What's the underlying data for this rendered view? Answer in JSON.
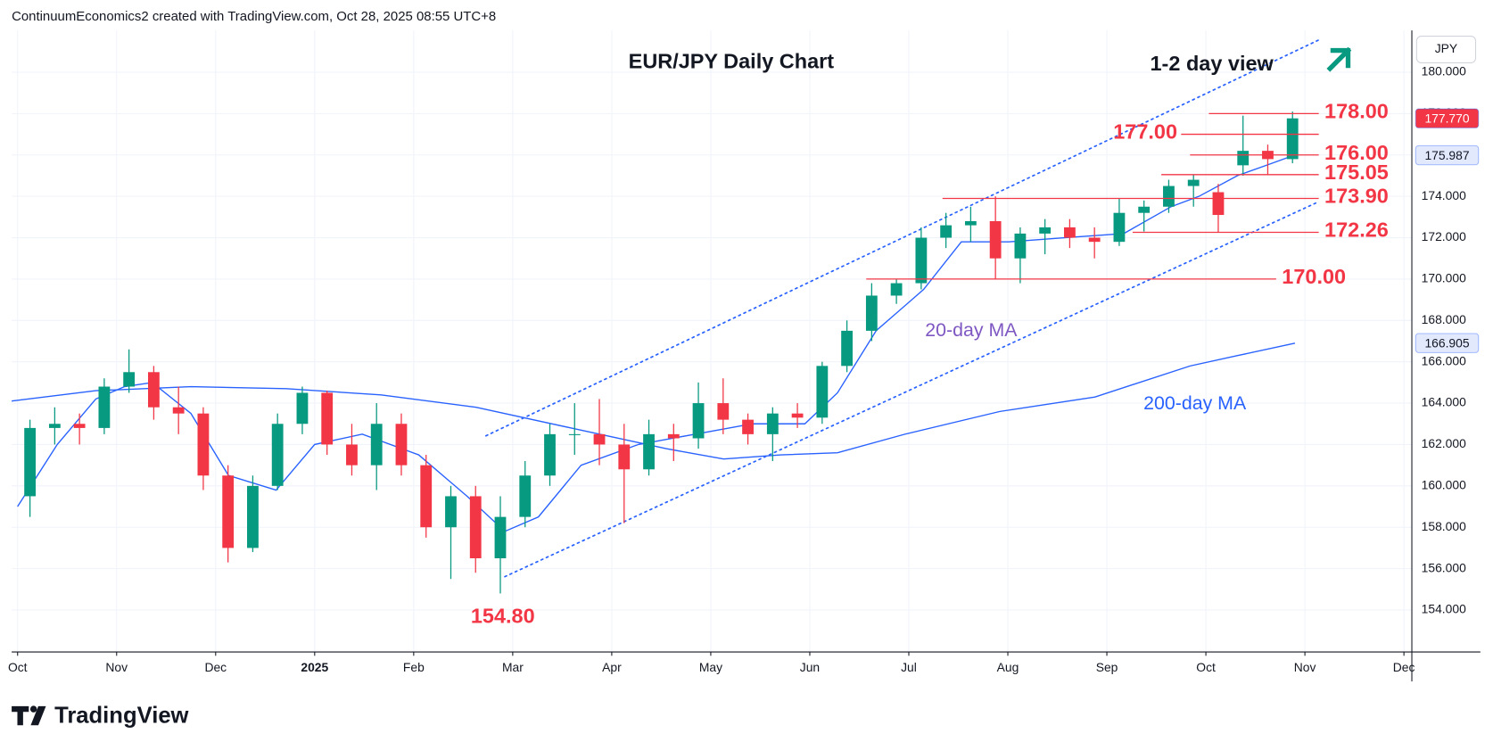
{
  "header": "ContinuumEconomics2 created with TradingView.com, Oct 28, 2025 08:55 UTC+8",
  "brand": "TradingView",
  "chart_data": {
    "type": "candlestick",
    "title": "EUR/JPY Daily Chart",
    "subtitle": "1-2 day view",
    "currency": "JPY",
    "up_color": "#089981",
    "down_color": "#f23645",
    "grid": true,
    "xlim": [
      -0.06,
      14.08
    ],
    "ylim": [
      151.97,
      182.02
    ],
    "xticks": [
      {
        "value": 0,
        "label": "Oct"
      },
      {
        "value": 1,
        "label": "Nov"
      },
      {
        "value": 2,
        "label": "Dec"
      },
      {
        "value": 3,
        "label": "2025",
        "bold": true
      },
      {
        "value": 4,
        "label": "Feb"
      },
      {
        "value": 5,
        "label": "Mar"
      },
      {
        "value": 6,
        "label": "Apr"
      },
      {
        "value": 7,
        "label": "May"
      },
      {
        "value": 8,
        "label": "Jun"
      },
      {
        "value": 9,
        "label": "Jul"
      },
      {
        "value": 10,
        "label": "Aug"
      },
      {
        "value": 11,
        "label": "Sep"
      },
      {
        "value": 12,
        "label": "Oct"
      },
      {
        "value": 13,
        "label": "Nov"
      },
      {
        "value": 14,
        "label": "Dec"
      }
    ],
    "yticks": [
      {
        "value": 154,
        "label": "154.000"
      },
      {
        "value": 156,
        "label": "156.000"
      },
      {
        "value": 158,
        "label": "158.000"
      },
      {
        "value": 160,
        "label": "160.000"
      },
      {
        "value": 162,
        "label": "162.000"
      },
      {
        "value": 164,
        "label": "164.000"
      },
      {
        "value": 166,
        "label": "166.000"
      },
      {
        "value": 168,
        "label": "168.000"
      },
      {
        "value": 170,
        "label": "170.000"
      },
      {
        "value": 172,
        "label": "172.000"
      },
      {
        "value": 174,
        "label": "174.000"
      },
      {
        "value": 176,
        "label": "176.000"
      },
      {
        "value": 178,
        "label": "178.000"
      },
      {
        "value": 180,
        "label": "180.000"
      }
    ],
    "candles": {
      "x": [
        0.125,
        0.375,
        0.625,
        0.875,
        1.125,
        1.375,
        1.625,
        1.875,
        2.125,
        2.375,
        2.625,
        2.875,
        3.125,
        3.375,
        3.625,
        3.875,
        4.125,
        4.375,
        4.625,
        4.875,
        5.125,
        5.375,
        5.625,
        5.875,
        6.125,
        6.375,
        6.625,
        6.875,
        7.125,
        7.375,
        7.625,
        7.875,
        8.125,
        8.375,
        8.625,
        8.875,
        9.125,
        9.375,
        9.625,
        9.875,
        10.125,
        10.375,
        10.625,
        10.875,
        11.125,
        11.375,
        11.625,
        11.875,
        12.125,
        12.375,
        12.625,
        12.875
      ],
      "open": [
        159.5,
        162.8,
        163.0,
        162.8,
        164.8,
        165.5,
        163.8,
        163.5,
        160.5,
        157.0,
        160.0,
        163.0,
        164.5,
        162.0,
        161.0,
        163.0,
        161.0,
        158.0,
        159.5,
        156.5,
        158.5,
        160.5,
        162.5,
        162.5,
        162.0,
        160.8,
        162.5,
        162.3,
        164.0,
        163.2,
        162.5,
        163.5,
        163.3,
        165.8,
        167.5,
        169.2,
        169.8,
        172.0,
        172.6,
        172.8,
        171.0,
        172.2,
        172.5,
        172.0,
        171.8,
        173.2,
        173.5,
        174.5,
        174.2,
        175.5,
        176.2,
        175.8
      ],
      "high": [
        163.2,
        163.8,
        163.5,
        165.2,
        166.6,
        165.8,
        164.8,
        163.8,
        161.0,
        160.5,
        163.5,
        164.8,
        164.6,
        163.0,
        164.0,
        163.5,
        161.5,
        160.0,
        160.0,
        159.5,
        161.2,
        163.0,
        164.0,
        164.2,
        163.0,
        163.2,
        163.0,
        165.0,
        165.2,
        163.5,
        163.8,
        164.0,
        166.0,
        168.0,
        169.8,
        170.0,
        172.5,
        173.2,
        173.5,
        174.0,
        172.5,
        172.9,
        172.9,
        172.5,
        173.9,
        173.8,
        174.8,
        175.05,
        174.6,
        177.9,
        176.5,
        178.1
      ],
      "low": [
        158.5,
        162.0,
        162.0,
        162.5,
        164.5,
        163.2,
        162.5,
        159.8,
        156.3,
        156.8,
        159.8,
        162.5,
        161.5,
        160.5,
        159.8,
        160.5,
        157.5,
        155.5,
        155.8,
        154.8,
        158.0,
        160.0,
        161.5,
        161.0,
        158.2,
        160.5,
        161.2,
        161.8,
        162.5,
        162.0,
        161.2,
        162.8,
        163.0,
        165.5,
        167.0,
        168.8,
        169.5,
        171.5,
        171.8,
        170.0,
        169.8,
        171.2,
        171.5,
        171.0,
        171.6,
        172.3,
        173.2,
        173.5,
        172.26,
        175.0,
        175.05,
        175.6
      ],
      "close": [
        162.8,
        163.0,
        162.8,
        164.8,
        165.5,
        163.8,
        163.5,
        160.5,
        157.0,
        160.0,
        163.0,
        164.5,
        162.0,
        161.0,
        163.0,
        161.0,
        158.0,
        159.5,
        156.5,
        158.5,
        160.5,
        162.5,
        162.5,
        162.0,
        160.8,
        162.5,
        162.3,
        164.0,
        163.2,
        162.5,
        163.5,
        163.3,
        165.8,
        167.5,
        169.2,
        169.8,
        172.0,
        172.6,
        172.8,
        171.0,
        172.2,
        172.5,
        172.0,
        171.8,
        173.2,
        173.5,
        174.5,
        174.8,
        173.1,
        176.2,
        175.8,
        177.77
      ]
    },
    "series": [
      {
        "name": "20-day MA",
        "color": "#2962ff",
        "label_color": "#7e57c2",
        "x": [
          0,
          0.4,
          0.79,
          1.08,
          1.36,
          1.75,
          2.13,
          2.61,
          3.0,
          3.48,
          4.05,
          4.54,
          4.92,
          5.26,
          5.69,
          6.27,
          6.84,
          7.42,
          7.95,
          8.28,
          8.67,
          9.15,
          9.53,
          10.01,
          10.59,
          11.17,
          11.65,
          11.93,
          12.32,
          12.61,
          12.9
        ],
        "values": [
          159,
          162,
          164.2,
          164.8,
          165,
          163.5,
          160.5,
          159.8,
          162,
          162.5,
          161.5,
          159.5,
          157.8,
          158.5,
          161,
          162,
          162.5,
          163,
          163,
          164.5,
          167.5,
          169.5,
          171.8,
          171.8,
          172,
          172.2,
          173.5,
          174,
          175,
          175.5,
          176
        ]
      },
      {
        "name": "200-day MA",
        "color": "#2962ff",
        "label_color": "#2962ff",
        "x": [
          -0.06,
          0.79,
          1.75,
          2.71,
          3.67,
          4.63,
          5.59,
          6.55,
          7.13,
          7.71,
          8.28,
          8.96,
          9.92,
          10.88,
          11.84,
          12.32,
          12.9
        ],
        "values": [
          164.1,
          164.6,
          164.8,
          164.7,
          164.4,
          163.8,
          162.8,
          161.8,
          161.3,
          161.5,
          161.6,
          162.5,
          163.6,
          164.3,
          165.8,
          166.3,
          166.9
        ]
      }
    ],
    "trendlines": [
      {
        "color": "#2962ff",
        "x": [
          4.73,
          13.14
        ],
        "values": [
          162.42,
          181.56
        ]
      },
      {
        "color": "#2962ff",
        "x": [
          4.92,
          13.14
        ],
        "values": [
          155.61,
          173.74
        ]
      }
    ],
    "levels": [
      {
        "value": 178,
        "label": "178.00",
        "xrange": [
          12.03,
          13.14
        ]
      },
      {
        "value": 177,
        "label": "177.00",
        "xrange": [
          11.75,
          13.14
        ],
        "label_side": "left"
      },
      {
        "value": 176,
        "label": "176.00",
        "xrange": [
          11.84,
          13.14
        ]
      },
      {
        "value": 175.05,
        "label": "175.05",
        "xrange": [
          11.55,
          13.14
        ]
      },
      {
        "value": 173.9,
        "label": "173.90",
        "xrange": [
          9.34,
          13.14
        ]
      },
      {
        "value": 172.26,
        "label": "172.26",
        "xrange": [
          11.26,
          13.14
        ]
      },
      {
        "value": 170,
        "label": "170.00",
        "xrange": [
          8.57,
          12.71
        ]
      }
    ],
    "low_annotation": {
      "value": 154.8,
      "label": "154.80"
    },
    "price_tags": [
      {
        "value": 177.77,
        "label": "177.770",
        "color": "#f23645",
        "text_color": "#ffffff"
      },
      {
        "value": 175.987,
        "label": "175.987",
        "color": "#e3e9fd",
        "text_color": "#131722"
      },
      {
        "value": 166.905,
        "label": "166.905",
        "color": "#e3e9fd",
        "text_color": "#131722"
      }
    ]
  }
}
